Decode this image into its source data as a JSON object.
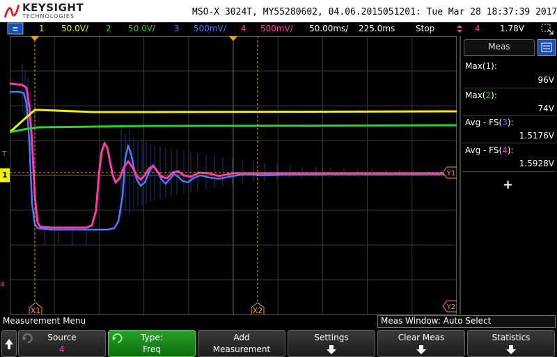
{
  "header": {
    "brand": "KEYSIGHT",
    "brand_sub": "TECHNOLOGIES",
    "title": "MSO-X 3024T, MY55280602, 04.06.2015051201: Tue Mar 28 18:37:39 2017"
  },
  "status": {
    "ch1": {
      "num": "1",
      "scale": "50.0V/",
      "color": "#f0f000"
    },
    "ch2": {
      "num": "2",
      "scale": "50.0V/",
      "color": "#27d427"
    },
    "ch3": {
      "num": "3",
      "scale": "500mV/",
      "color": "#4a7cff"
    },
    "ch4": {
      "num": "4",
      "scale": "500mV/",
      "color": "#ff3aa8"
    },
    "timebase": "50.00ms/",
    "delay": "225.0ms",
    "run_state": "Stop",
    "trigger_source": "4",
    "trigger_level": "1.78V"
  },
  "grid": {
    "cursor_x1": "X1",
    "cursor_x2": "X2",
    "cursor_y1": "Y1",
    "cursor_y2": "Y2",
    "trigger_marker": "T",
    "ch1_marker": "1",
    "ch4_marker": "4"
  },
  "meas_panel": {
    "tab": "Meas",
    "items": [
      {
        "label": "Max(",
        "ch": "1",
        "label_end": "):",
        "value": "96V",
        "ch_color": "#f0f000"
      },
      {
        "label": "Max(",
        "ch": "2",
        "label_end": "):",
        "value": "74V",
        "ch_color": "#27d427"
      },
      {
        "label": "Avg - FS(",
        "ch": "3",
        "label_end": "):",
        "value": "1.5176V",
        "ch_color": "#4a7cff"
      },
      {
        "label": "Avg - FS(",
        "ch": "4",
        "label_end": "):",
        "value": "1.5928V",
        "ch_color": "#ff3aa8"
      }
    ],
    "add": "+"
  },
  "menu": {
    "title": "Measurement Menu",
    "meas_window": "Meas Window: Auto Select",
    "softkeys": {
      "source_label": "Source",
      "source_value": "4",
      "type_label": "Type:",
      "type_value": "Freq",
      "add_label": "Add",
      "add_value": "Measurement",
      "settings_label": "Settings",
      "clear_label": "Clear Meas",
      "statistics_label": "Statistics"
    }
  },
  "colors": {
    "ch1": "#f0f000",
    "ch2": "#27d427",
    "ch3": "#4a7cff",
    "ch4": "#ff3aa8",
    "cursor": "#ff9a1a"
  },
  "icons": {
    "back": "up-arrow-icon",
    "softkey_more": "down-arrow-icon"
  }
}
